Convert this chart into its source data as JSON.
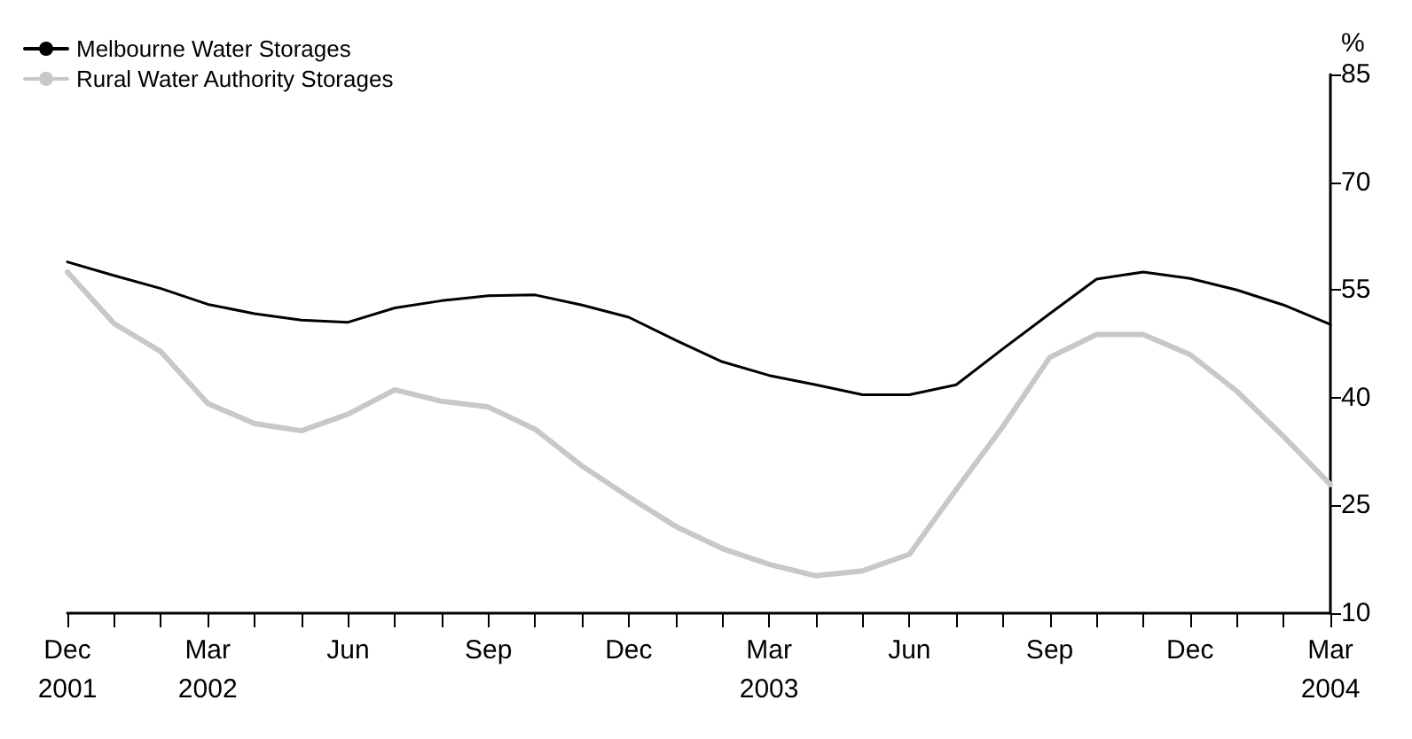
{
  "chart_data": {
    "type": "line",
    "ylabel": "%",
    "categories": [
      "Dec\n2001",
      null,
      null,
      "Mar\n2002",
      null,
      null,
      "Jun",
      null,
      null,
      "Sep",
      null,
      null,
      "Dec",
      null,
      null,
      "Mar\n2003",
      null,
      null,
      "Jun",
      null,
      null,
      "Sep",
      null,
      null,
      "Dec",
      null,
      null,
      "Mar\n2004"
    ],
    "series": [
      {
        "name": "Melbourne Water Storages",
        "color": "#000000",
        "values": [
          58.9,
          57.0,
          55.2,
          53.0,
          51.7,
          50.8,
          50.5,
          52.5,
          53.5,
          54.2,
          54.3,
          52.9,
          51.2,
          48.0,
          45.0,
          43.1,
          41.8,
          40.4,
          40.4,
          41.8,
          46.8,
          51.7,
          56.5,
          57.5,
          56.6,
          55.0,
          52.9,
          50.2
        ]
      },
      {
        "name": "Rural Water Authority Storages",
        "color": "#c8c8c8",
        "values": [
          57.5,
          50.3,
          46.4,
          39.2,
          36.4,
          35.4,
          37.7,
          41.1,
          39.5,
          38.7,
          35.6,
          30.5,
          26.2,
          22.1,
          19.0,
          16.8,
          15.2,
          15.9,
          18.2,
          27.2,
          36.0,
          45.6,
          48.8,
          48.8,
          46.0,
          40.9,
          34.6,
          27.9
        ]
      }
    ],
    "ylim": [
      10,
      85
    ],
    "yticks": [
      10,
      25,
      40,
      55,
      70,
      85
    ],
    "grid": false,
    "legend": "top left",
    "marker": "none",
    "line_style": "solid"
  }
}
